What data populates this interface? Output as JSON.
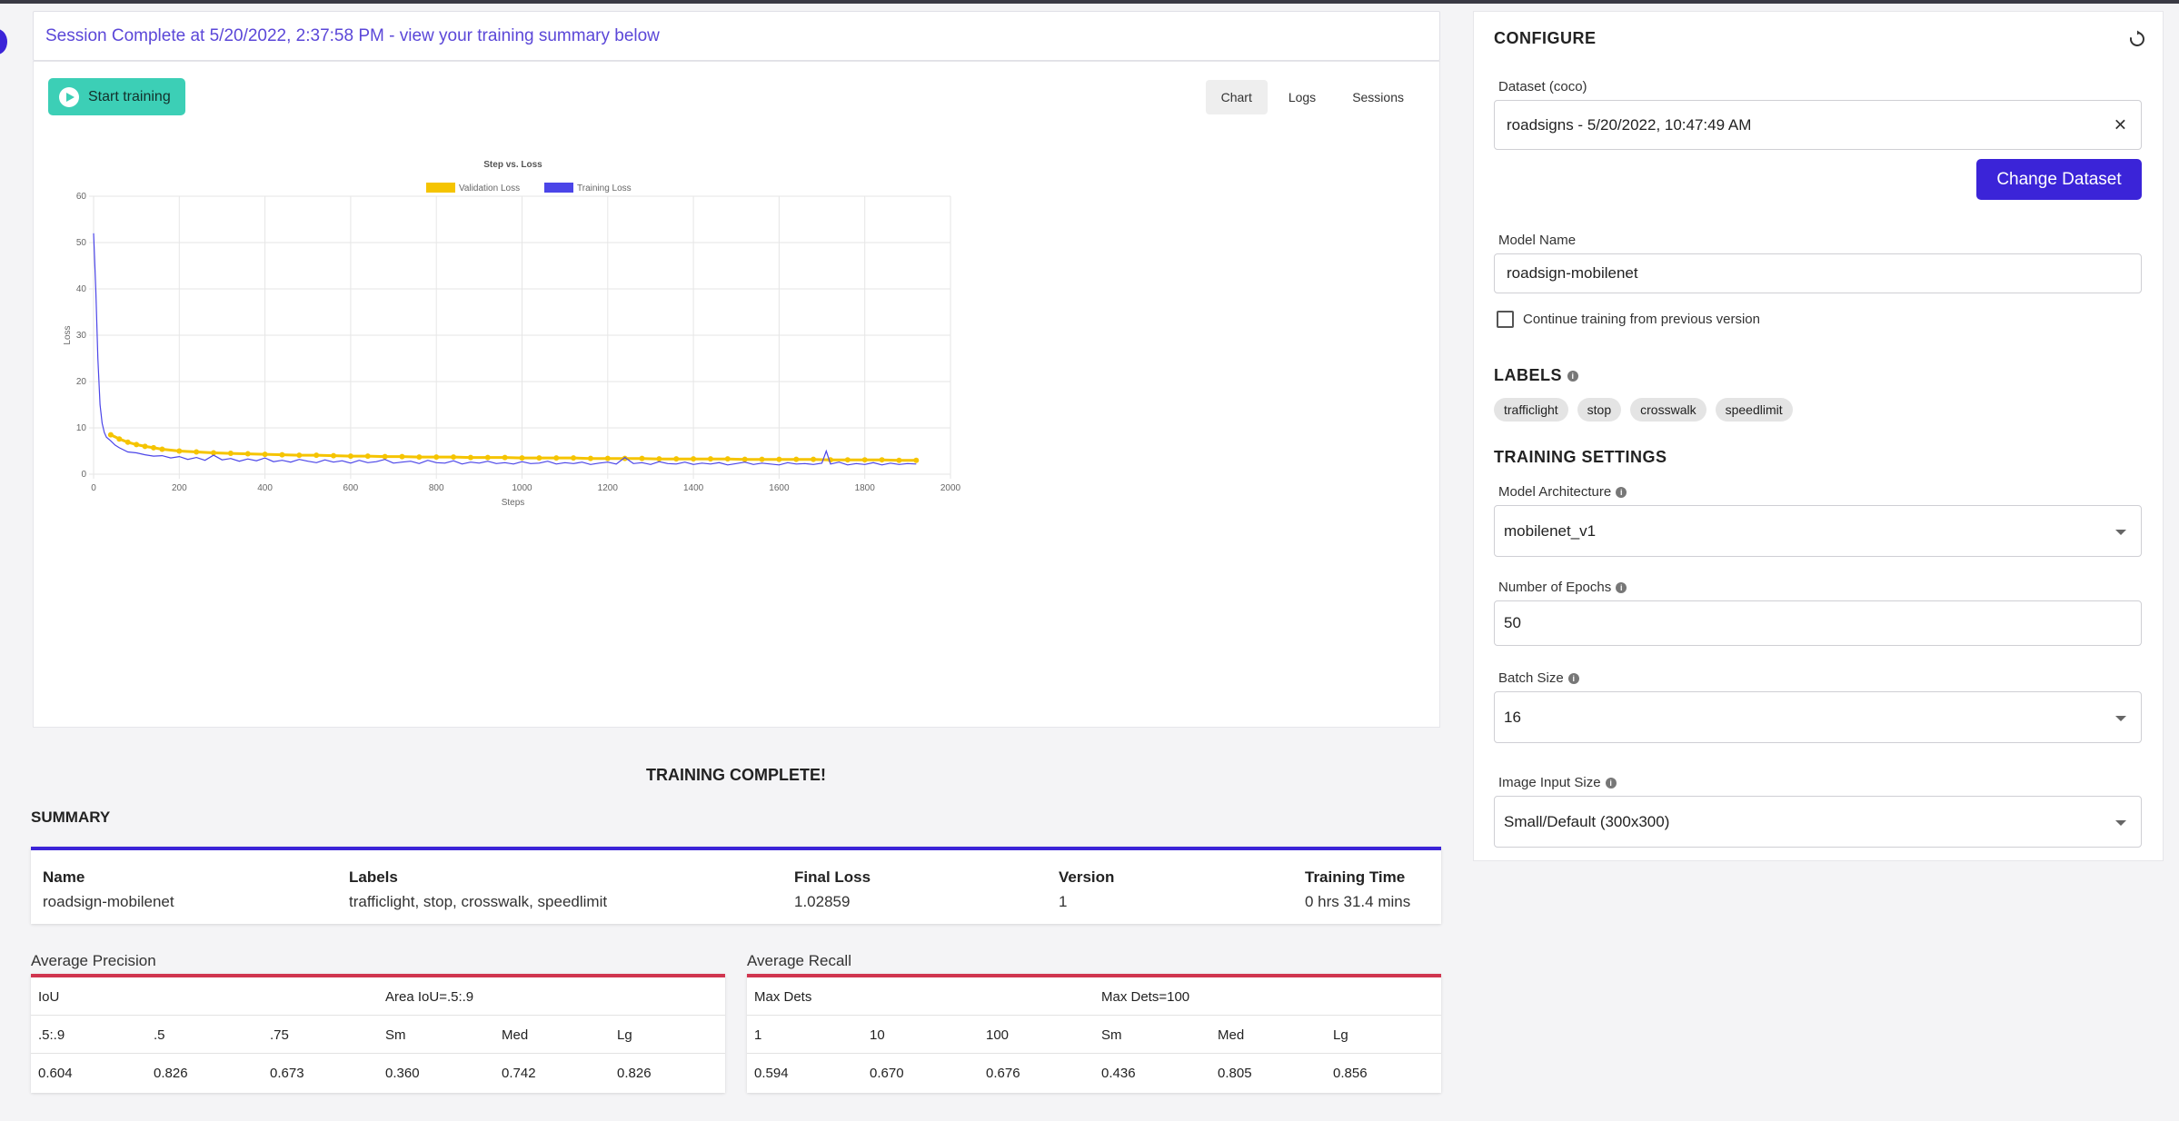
{
  "banner": {
    "text": "Session Complete at 5/20/2022, 2:37:58 PM - view your training summary below"
  },
  "toolbar": {
    "start_label": "Start training"
  },
  "view_tabs": [
    "Chart",
    "Logs",
    "Sessions"
  ],
  "chart_data": {
    "type": "line",
    "title": "Step vs. Loss",
    "xlabel": "Steps",
    "ylabel": "Loss",
    "xlim": [
      0,
      2000
    ],
    "ylim": [
      0,
      60
    ],
    "xticks": [
      0,
      200,
      400,
      600,
      800,
      1000,
      1200,
      1400,
      1600,
      1800,
      2000
    ],
    "yticks": [
      0,
      10,
      20,
      30,
      40,
      50,
      60
    ],
    "grid": true,
    "legend_position": "top",
    "series": [
      {
        "name": "Validation Loss",
        "color": "#f5c400",
        "x": [
          40,
          60,
          80,
          100,
          120,
          140,
          160,
          200,
          240,
          280,
          320,
          360,
          400,
          440,
          480,
          520,
          560,
          600,
          640,
          680,
          720,
          760,
          800,
          840,
          880,
          920,
          960,
          1000,
          1040,
          1080,
          1120,
          1160,
          1200,
          1240,
          1280,
          1320,
          1360,
          1400,
          1440,
          1480,
          1520,
          1560,
          1600,
          1640,
          1680,
          1720,
          1760,
          1800,
          1840,
          1880,
          1920
        ],
        "y": [
          8.5,
          7.6,
          6.9,
          6.4,
          6.0,
          5.7,
          5.4,
          5.0,
          4.8,
          4.6,
          4.5,
          4.4,
          4.3,
          4.2,
          4.1,
          4.1,
          4.0,
          3.9,
          3.9,
          3.8,
          3.8,
          3.7,
          3.7,
          3.7,
          3.6,
          3.6,
          3.6,
          3.5,
          3.5,
          3.5,
          3.5,
          3.4,
          3.4,
          3.4,
          3.4,
          3.3,
          3.3,
          3.3,
          3.3,
          3.3,
          3.2,
          3.2,
          3.2,
          3.2,
          3.2,
          3.1,
          3.1,
          3.1,
          3.1,
          3.0,
          3.0
        ]
      },
      {
        "name": "Training Loss",
        "color": "#4b45e8",
        "x": [
          0,
          5,
          10,
          15,
          20,
          25,
          30,
          40,
          50,
          60,
          80,
          100,
          120,
          140,
          160,
          180,
          200,
          220,
          240,
          260,
          280,
          300,
          320,
          340,
          360,
          380,
          400,
          420,
          440,
          460,
          480,
          500,
          520,
          540,
          560,
          580,
          600,
          620,
          640,
          660,
          680,
          700,
          720,
          740,
          760,
          780,
          800,
          820,
          840,
          860,
          880,
          900,
          920,
          940,
          960,
          980,
          1000,
          1020,
          1040,
          1060,
          1080,
          1100,
          1120,
          1140,
          1160,
          1180,
          1200,
          1220,
          1240,
          1260,
          1280,
          1300,
          1320,
          1340,
          1360,
          1380,
          1400,
          1420,
          1440,
          1460,
          1480,
          1500,
          1520,
          1540,
          1560,
          1580,
          1600,
          1620,
          1640,
          1660,
          1680,
          1700,
          1710,
          1720,
          1740,
          1760,
          1780,
          1800,
          1820,
          1840,
          1860,
          1880,
          1900,
          1920
        ],
        "y": [
          52,
          40,
          25,
          15,
          11,
          9,
          8,
          7.2,
          6.3,
          5.7,
          4.8,
          4.6,
          4.2,
          3.9,
          4.0,
          3.5,
          3.8,
          3.2,
          3.6,
          3.0,
          4.1,
          3.1,
          3.4,
          2.8,
          3.3,
          2.9,
          3.5,
          2.7,
          3.0,
          2.6,
          3.2,
          2.8,
          2.5,
          3.1,
          2.6,
          2.9,
          2.4,
          3.0,
          2.5,
          2.7,
          3.2,
          2.4,
          2.6,
          2.8,
          2.3,
          3.0,
          2.5,
          2.4,
          2.9,
          2.2,
          2.6,
          2.4,
          2.8,
          2.3,
          2.5,
          2.2,
          2.7,
          2.3,
          2.4,
          2.8,
          2.2,
          2.5,
          2.3,
          2.6,
          2.1,
          2.4,
          2.6,
          2.2,
          3.6,
          2.3,
          2.5,
          2.1,
          2.7,
          2.3,
          2.2,
          2.6,
          2.1,
          2.4,
          2.2,
          2.5,
          2.0,
          2.3,
          2.6,
          2.1,
          2.4,
          2.2,
          2.0,
          2.5,
          2.2,
          2.3,
          2.1,
          2.4,
          5.0,
          2.2,
          2.6,
          2.0,
          2.3,
          2.1,
          2.5,
          2.0,
          2.4,
          2.1,
          2.3,
          2.2
        ]
      }
    ]
  },
  "status": {
    "complete_text": "TRAINING COMPLETE!"
  },
  "summary": {
    "title": "SUMMARY",
    "name_h": "Name",
    "name_v": "roadsign-mobilenet",
    "labels_h": "Labels",
    "labels_v": "trafficlight, stop, crosswalk, speedlimit",
    "loss_h": "Final Loss",
    "loss_v": "1.02859",
    "version_h": "Version",
    "version_v": "1",
    "time_h": "Training Time",
    "time_v": "0 hrs 31.4 mins"
  },
  "precision": {
    "title": "Average Precision",
    "group1": "IoU",
    "group2": "Area IoU=.5:.9",
    "headers": [
      ".5:.9",
      ".5",
      ".75",
      "Sm",
      "Med",
      "Lg"
    ],
    "values": [
      "0.604",
      "0.826",
      "0.673",
      "0.360",
      "0.742",
      "0.826"
    ]
  },
  "recall": {
    "title": "Average Recall",
    "group1": "Max Dets",
    "group2": "Max Dets=100",
    "headers": [
      "1",
      "10",
      "100",
      "Sm",
      "Med",
      "Lg"
    ],
    "values": [
      "0.594",
      "0.670",
      "0.676",
      "0.436",
      "0.805",
      "0.856"
    ]
  },
  "config": {
    "title": "CONFIGURE",
    "reset_icon": "reset-icon",
    "dataset_label": "Dataset (coco)",
    "dataset_value": "roadsigns - 5/20/2022, 10:47:49 AM",
    "clear_glyph": "✕",
    "change_dataset": "Change Dataset",
    "model_name_label": "Model Name",
    "model_name_value": "roadsign-mobilenet",
    "continue_label": "Continue training from previous version",
    "labels_title": "LABELS",
    "labels": [
      "trafficlight",
      "stop",
      "crosswalk",
      "speedlimit"
    ],
    "training_title": "TRAINING SETTINGS",
    "arch_label": "Model Architecture",
    "arch_value": "mobilenet_v1",
    "epochs_label": "Number of Epochs",
    "epochs_value": "50",
    "batch_label": "Batch Size",
    "batch_value": "16",
    "input_size_label": "Image Input Size",
    "input_size_value": "Small/Default (300x300)"
  }
}
